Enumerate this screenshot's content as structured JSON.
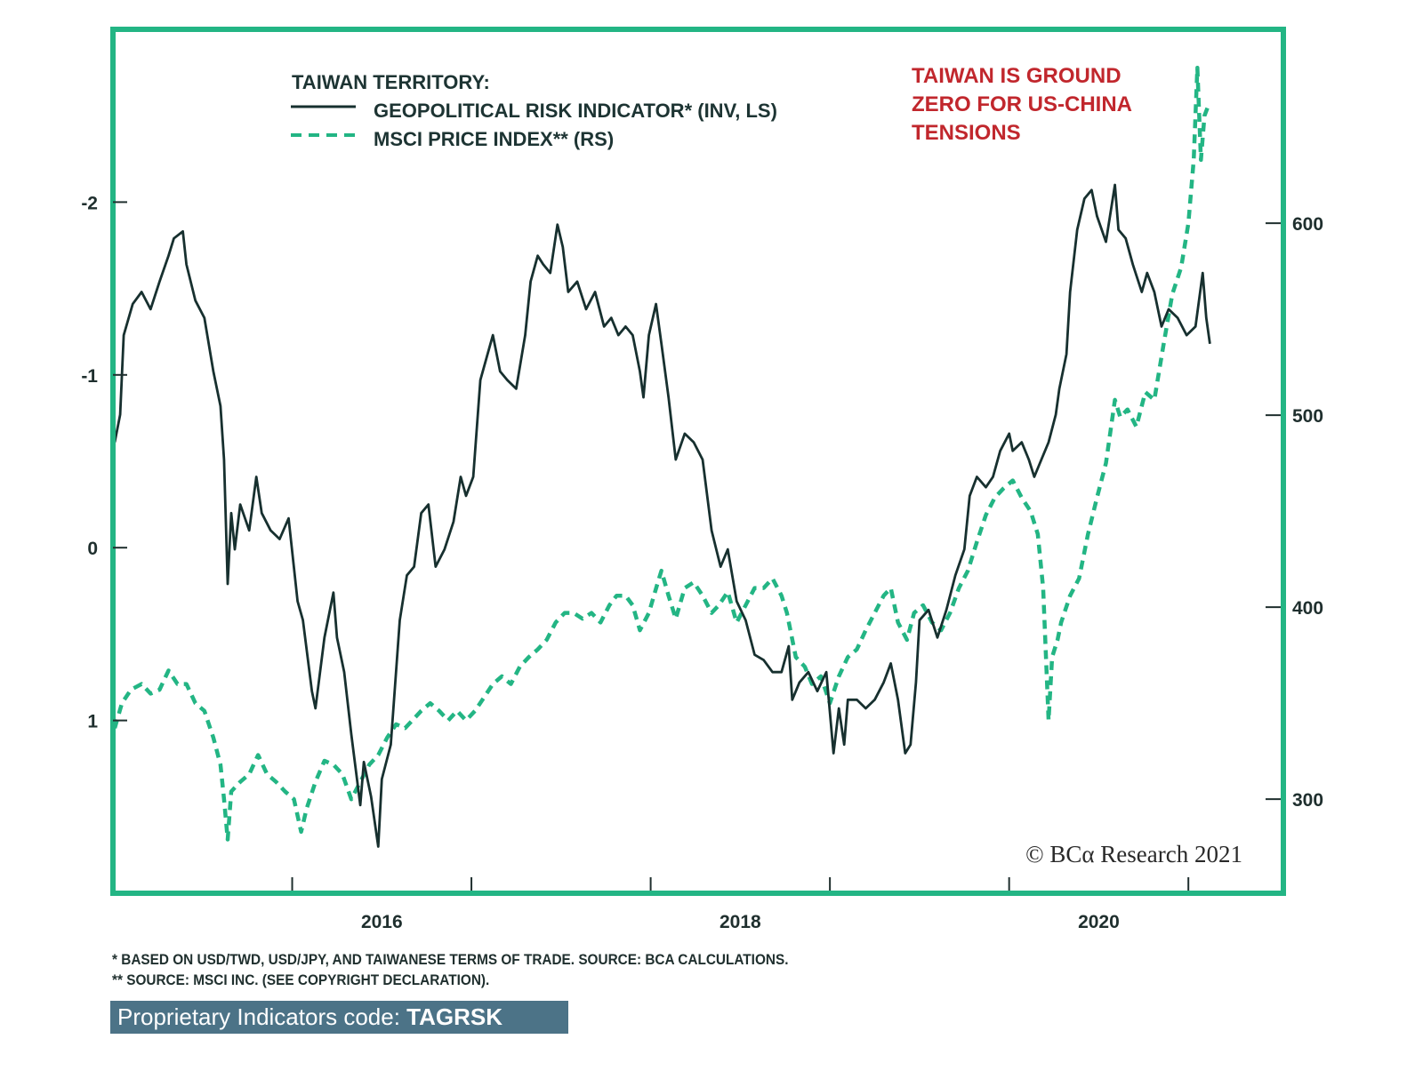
{
  "chart_data": {
    "type": "line",
    "legend_title": "TAIWAN TERRITORY:",
    "legend_placement": "top-left",
    "annotation": [
      "TAIWAN IS GROUND",
      "ZERO FOR US-CHINA",
      "TENSIONS"
    ],
    "copyright": "© BCα Research 2021",
    "x_axis": {
      "range": [
        2015.0,
        2021.53
      ],
      "ticks": [
        2016,
        2017,
        2018,
        2019,
        2020,
        2021
      ],
      "labels": [
        {
          "value": 2016.5,
          "text": "2016"
        },
        {
          "value": 2018.5,
          "text": "2018"
        },
        {
          "value": 2020.5,
          "text": "2020"
        }
      ]
    },
    "y_left": {
      "range": [
        -3.0,
        2.0
      ],
      "inverted": true,
      "ticks": [
        -2,
        -1,
        0,
        1
      ],
      "tick_labels": [
        "-2",
        "-1",
        "0",
        "1"
      ]
    },
    "y_right": {
      "range": [
        251,
        701
      ],
      "ticks": [
        300,
        400,
        500,
        600
      ],
      "tick_labels": [
        "300",
        "400",
        "500",
        "600"
      ]
    },
    "grid": false,
    "series": [
      {
        "name": "GEOPOLITICAL RISK INDICATOR* (INV, LS)",
        "axis": "left",
        "style": "solid",
        "color": "#17302f",
        "x": [
          2015.01,
          2015.04,
          2015.06,
          2015.11,
          2015.16,
          2015.21,
          2015.26,
          2015.31,
          2015.34,
          2015.39,
          2015.41,
          2015.46,
          2015.51,
          2015.56,
          2015.6,
          2015.62,
          2015.64,
          2015.66,
          2015.68,
          2015.71,
          2015.76,
          2015.8,
          2015.83,
          2015.88,
          2015.93,
          2015.98,
          2016.03,
          2016.06,
          2016.11,
          2016.13,
          2016.18,
          2016.23,
          2016.25,
          2016.29,
          2016.33,
          2016.38,
          2016.4,
          2016.44,
          2016.48,
          2016.5,
          2016.55,
          2016.6,
          2016.64,
          2016.68,
          2016.72,
          2016.76,
          2016.8,
          2016.85,
          2016.9,
          2016.94,
          2016.97,
          2017.01,
          2017.05,
          2017.09,
          2017.12,
          2017.16,
          2017.2,
          2017.25,
          2017.3,
          2017.33,
          2017.37,
          2017.4,
          2017.44,
          2017.48,
          2017.51,
          2017.54,
          2017.59,
          2017.64,
          2017.69,
          2017.74,
          2017.78,
          2017.82,
          2017.86,
          2017.9,
          2017.94,
          2017.96,
          2017.99,
          2018.03,
          2018.06,
          2018.1,
          2018.14,
          2018.19,
          2018.24,
          2018.29,
          2018.34,
          2018.39,
          2018.43,
          2018.48,
          2018.53,
          2018.58,
          2018.63,
          2018.68,
          2018.73,
          2018.77,
          2018.79,
          2018.83,
          2018.88,
          2018.93,
          2018.98,
          2019.02,
          2019.05,
          2019.08,
          2019.1,
          2019.15,
          2019.2,
          2019.25,
          2019.3,
          2019.34,
          2019.38,
          2019.42,
          2019.45,
          2019.48,
          2019.5,
          2019.55,
          2019.6,
          2019.65,
          2019.7,
          2019.75,
          2019.78,
          2019.82,
          2019.87,
          2019.91,
          2019.95,
          2020.0,
          2020.02,
          2020.07,
          2020.11,
          2020.14,
          2020.18,
          2020.22,
          2020.26,
          2020.28,
          2020.32,
          2020.34,
          2020.38,
          2020.42,
          2020.46,
          2020.49,
          2020.54,
          2020.59,
          2020.61,
          2020.65,
          2020.69,
          2020.74,
          2020.77,
          2020.81,
          2020.85,
          2020.89,
          2020.94,
          2020.99,
          2021.04,
          2021.08,
          2021.1,
          2021.12
        ],
        "values": [
          -0.61,
          -0.77,
          -1.23,
          -1.41,
          -1.48,
          -1.38,
          -1.54,
          -1.69,
          -1.79,
          -1.83,
          -1.64,
          -1.43,
          -1.33,
          -1.02,
          -0.82,
          -0.51,
          0.21,
          -0.2,
          0.01,
          -0.25,
          -0.1,
          -0.41,
          -0.2,
          -0.1,
          -0.05,
          -0.17,
          0.31,
          0.42,
          0.83,
          0.93,
          0.52,
          0.26,
          0.52,
          0.72,
          1.08,
          1.49,
          1.24,
          1.44,
          1.73,
          1.34,
          1.14,
          0.42,
          0.16,
          0.11,
          -0.2,
          -0.25,
          0.11,
          0.01,
          -0.15,
          -0.41,
          -0.3,
          -0.41,
          -0.97,
          -1.12,
          -1.23,
          -1.02,
          -0.97,
          -0.92,
          -1.23,
          -1.54,
          -1.69,
          -1.64,
          -1.59,
          -1.87,
          -1.74,
          -1.48,
          -1.54,
          -1.38,
          -1.48,
          -1.28,
          -1.33,
          -1.23,
          -1.28,
          -1.23,
          -1.02,
          -0.87,
          -1.23,
          -1.41,
          -1.18,
          -0.87,
          -0.51,
          -0.66,
          -0.61,
          -0.51,
          -0.1,
          0.11,
          0.01,
          0.31,
          0.42,
          0.62,
          0.65,
          0.72,
          0.72,
          0.57,
          0.88,
          0.78,
          0.72,
          0.83,
          0.72,
          1.19,
          0.93,
          1.14,
          0.88,
          0.88,
          0.93,
          0.88,
          0.78,
          0.67,
          0.88,
          1.19,
          1.14,
          0.78,
          0.42,
          0.36,
          0.52,
          0.36,
          0.16,
          0.01,
          -0.3,
          -0.41,
          -0.35,
          -0.41,
          -0.56,
          -0.66,
          -0.56,
          -0.61,
          -0.51,
          -0.41,
          -0.51,
          -0.61,
          -0.77,
          -0.92,
          -1.12,
          -1.48,
          -1.84,
          -2.02,
          -2.07,
          -1.92,
          -1.77,
          -2.1,
          -1.84,
          -1.79,
          -1.64,
          -1.48,
          -1.59,
          -1.48,
          -1.28,
          -1.38,
          -1.33,
          -1.23,
          -1.28,
          -1.59,
          -1.33,
          -1.18
        ]
      },
      {
        "name": "MSCI PRICE INDEX** (RS)",
        "axis": "right",
        "style": "dashed",
        "color": "#23b584",
        "x": [
          2015.01,
          2015.05,
          2015.1,
          2015.16,
          2015.21,
          2015.26,
          2015.31,
          2015.36,
          2015.41,
          2015.46,
          2015.51,
          2015.56,
          2015.6,
          2015.62,
          2015.64,
          2015.66,
          2015.71,
          2015.76,
          2015.81,
          2015.86,
          2015.91,
          2015.96,
          2016.01,
          2016.05,
          2016.08,
          2016.13,
          2016.18,
          2016.23,
          2016.28,
          2016.33,
          2016.38,
          2016.43,
          2016.48,
          2016.53,
          2016.58,
          2016.63,
          2016.67,
          2016.72,
          2016.77,
          2016.82,
          2016.87,
          2016.92,
          2016.97,
          2017.02,
          2017.07,
          2017.12,
          2017.17,
          2017.22,
          2017.27,
          2017.32,
          2017.37,
          2017.42,
          2017.47,
          2017.52,
          2017.57,
          2017.62,
          2017.67,
          2017.72,
          2017.77,
          2017.81,
          2017.86,
          2017.9,
          2017.94,
          2017.99,
          2018.04,
          2018.06,
          2018.1,
          2018.14,
          2018.19,
          2018.24,
          2018.29,
          2018.34,
          2018.38,
          2018.43,
          2018.48,
          2018.53,
          2018.58,
          2018.63,
          2018.68,
          2018.73,
          2018.76,
          2018.81,
          2018.86,
          2018.9,
          2018.95,
          2019.0,
          2019.05,
          2019.1,
          2019.15,
          2019.2,
          2019.25,
          2019.3,
          2019.34,
          2019.38,
          2019.43,
          2019.47,
          2019.52,
          2019.57,
          2019.62,
          2019.67,
          2019.72,
          2019.77,
          2019.82,
          2019.87,
          2019.92,
          2019.97,
          2020.02,
          2020.07,
          2020.12,
          2020.16,
          2020.19,
          2020.22,
          2020.24,
          2020.27,
          2020.29,
          2020.34,
          2020.39,
          2020.44,
          2020.49,
          2020.54,
          2020.59,
          2020.62,
          2020.66,
          2020.71,
          2020.76,
          2020.81,
          2020.86,
          2020.91,
          2020.96,
          2021.0,
          2021.03,
          2021.05,
          2021.07,
          2021.09,
          2021.11
        ],
        "values": [
          337,
          350,
          357,
          360,
          355,
          357,
          367,
          360,
          360,
          350,
          346,
          332,
          318,
          300,
          279,
          304,
          309,
          313,
          323,
          313,
          309,
          304,
          300,
          283,
          295,
          309,
          320,
          318,
          313,
          300,
          309,
          318,
          323,
          332,
          339,
          337,
          341,
          346,
          350,
          346,
          341,
          346,
          341,
          346,
          353,
          360,
          364,
          360,
          369,
          374,
          378,
          383,
          392,
          397,
          397,
          394,
          397,
          392,
          401,
          406,
          406,
          401,
          388,
          397,
          413,
          419,
          406,
          394,
          410,
          413,
          406,
          397,
          401,
          408,
          392,
          401,
          410,
          410,
          415,
          406,
          397,
          374,
          369,
          360,
          364,
          350,
          364,
          374,
          378,
          388,
          397,
          406,
          410,
          392,
          383,
          397,
          401,
          392,
          388,
          397,
          410,
          419,
          434,
          448,
          457,
          462,
          466,
          457,
          450,
          438,
          410,
          341,
          374,
          383,
          392,
          406,
          415,
          438,
          457,
          475,
          508,
          499,
          503,
          494,
          512,
          508,
          536,
          563,
          577,
          600,
          633,
          681,
          633,
          656,
          661
        ]
      }
    ]
  },
  "footnotes": [
    "*  BASED ON USD/TWD, USD/JPY, AND TAIWANESE TERMS OF TRADE. SOURCE: BCA CALCULATIONS.",
    "** SOURCE: MSCI INC. (SEE COPYRIGHT DECLARATION)."
  ],
  "badge": {
    "label": "Proprietary Indicators code: ",
    "code": "TAGRSK"
  },
  "colors": {
    "frame": "#23b584",
    "dark_line": "#17302f",
    "msci": "#23b584",
    "annotation": "#c1272d",
    "badge_bg": "#4c7387"
  }
}
